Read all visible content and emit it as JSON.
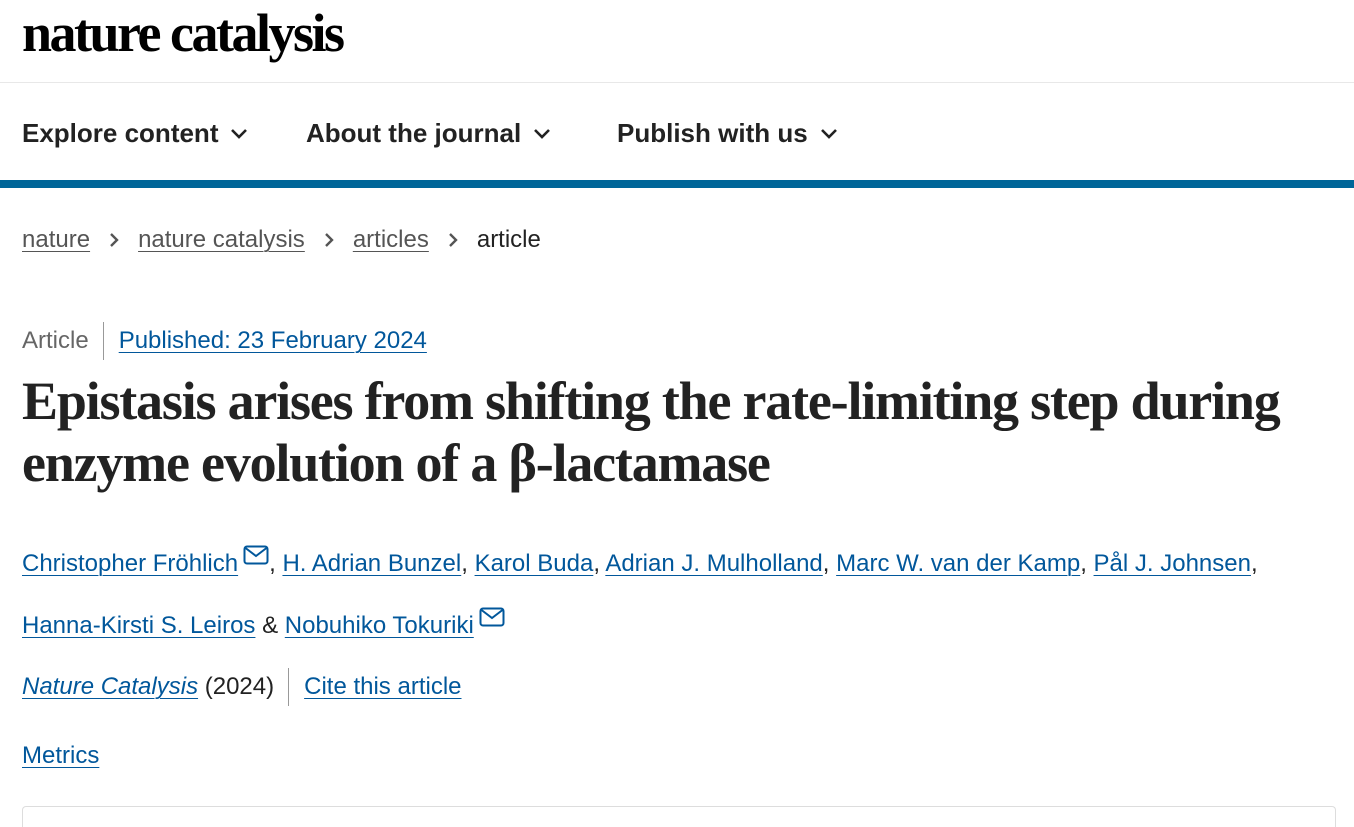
{
  "brand": {
    "logo": "nature catalysis"
  },
  "nav": {
    "items": [
      {
        "label": "Explore content"
      },
      {
        "label": "About the journal"
      },
      {
        "label": "Publish with us"
      }
    ]
  },
  "breadcrumb": {
    "items": [
      "nature",
      "nature catalysis",
      "articles"
    ],
    "current": "article"
  },
  "article": {
    "type": "Article",
    "published": "Published: 23 February 2024",
    "title": "Epistasis arises from shifting the rate-limiting step during enzyme evolution of a β-lactamase",
    "authors": [
      {
        "name": "Christopher Fröhlich",
        "sep": "",
        "email": true
      },
      {
        "name": "H. Adrian Bunzel",
        "sep": ", ",
        "email": false
      },
      {
        "name": "Karol Buda",
        "sep": ", ",
        "email": false
      },
      {
        "name": "Adrian J. Mulholland",
        "sep": ", ",
        "email": false
      },
      {
        "name": "Marc W. van der Kamp",
        "sep": ", ",
        "email": false
      },
      {
        "name": "Pål J. Johnsen",
        "sep": ", ",
        "email": false
      },
      {
        "name": "Hanna-Kirsti S. Leiros",
        "sep": ", ",
        "email": false
      },
      {
        "name": "Nobuhiko Tokuriki",
        "sep": " & ",
        "email": true
      }
    ],
    "journal": "Nature Catalysis",
    "year": "(2024)",
    "cite_label": "Cite this article",
    "metrics_label": "Metrics"
  },
  "colors": {
    "link": "#01579b",
    "accent_bar": "#006699",
    "text": "#222222"
  },
  "icons": {
    "chevron": "chevron-down-icon",
    "breadcrumb_sep": "chevron-right-icon",
    "email": "envelope-icon"
  }
}
